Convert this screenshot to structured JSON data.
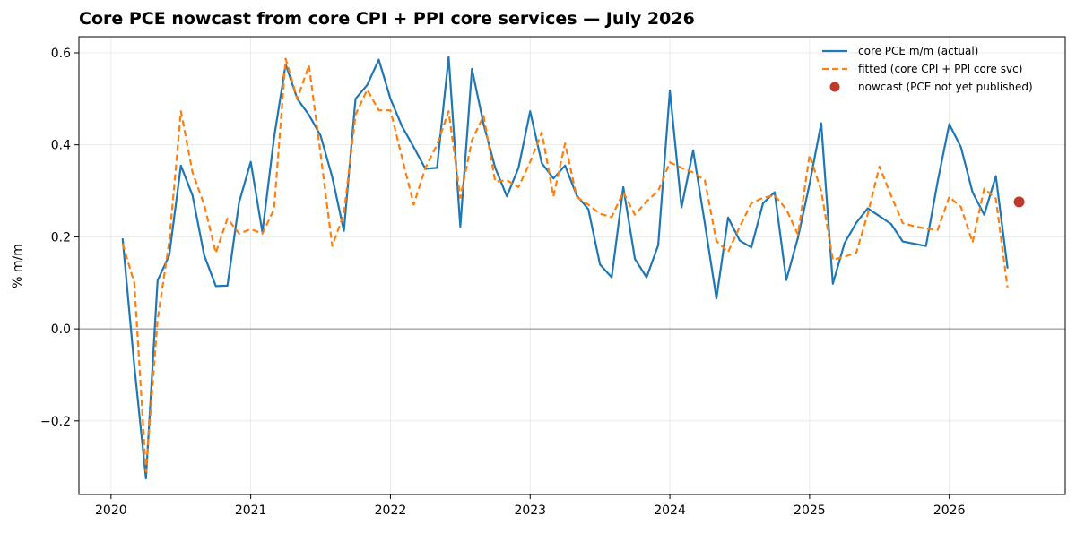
{
  "chart_data": {
    "type": "line",
    "title": "Core PCE nowcast from core CPI + PPI core services — July 2026",
    "xlabel": "",
    "ylabel": "% m/m",
    "xlim": [
      2019.77,
      2026.83
    ],
    "ylim": [
      -0.36,
      0.635
    ],
    "x_ticks": [
      2020,
      2021,
      2022,
      2023,
      2024,
      2025,
      2026
    ],
    "x_tick_labels": [
      "2020",
      "2021",
      "2022",
      "2023",
      "2024",
      "2025",
      "2026"
    ],
    "y_ticks": [
      -0.2,
      0.0,
      0.2,
      0.4,
      0.6
    ],
    "y_tick_labels": [
      "−0.2",
      "0.0",
      "0.2",
      "0.4",
      "0.6"
    ],
    "grid": true,
    "zero_line": true,
    "legend_position": "top-right",
    "x_start": "2020-02",
    "series": [
      {
        "name": "core PCE m/m (actual)",
        "color": "#1f77b4",
        "style": "solid",
        "values": [
          0.195,
          -0.08,
          -0.325,
          0.105,
          0.16,
          0.355,
          0.29,
          0.16,
          0.093,
          0.094,
          0.275,
          0.363,
          0.21,
          0.415,
          0.575,
          0.5,
          0.465,
          0.42,
          0.33,
          0.213,
          0.5,
          0.53,
          0.585,
          0.5,
          0.44,
          0.395,
          0.348,
          0.35,
          0.591,
          0.222,
          0.565,
          0.445,
          0.35,
          0.288,
          0.35,
          0.473,
          0.36,
          0.327,
          0.355,
          0.29,
          0.26,
          0.14,
          0.112,
          0.308,
          0.152,
          0.112,
          0.182,
          0.518,
          0.264,
          0.388,
          0.23,
          0.066,
          0.242,
          0.192,
          0.177,
          0.273,
          0.297,
          0.106,
          0.198,
          0.315,
          0.447,
          0.098,
          0.186,
          0.23,
          0.262,
          0.245,
          0.228,
          0.19,
          0.185,
          0.18,
          0.32,
          0.445,
          0.395,
          0.297,
          0.248,
          0.332,
          0.133
        ]
      },
      {
        "name": "fitted (core CPI + PPI core svc)",
        "color": "#ff7f0e",
        "style": "dashed",
        "values": [
          0.185,
          0.1,
          -0.31,
          0.02,
          0.19,
          0.473,
          0.34,
          0.27,
          0.165,
          0.24,
          0.207,
          0.217,
          0.207,
          0.26,
          0.587,
          0.5,
          0.573,
          0.38,
          0.18,
          0.25,
          0.465,
          0.52,
          0.475,
          0.475,
          0.372,
          0.27,
          0.35,
          0.4,
          0.473,
          0.285,
          0.41,
          0.463,
          0.32,
          0.323,
          0.308,
          0.363,
          0.427,
          0.288,
          0.403,
          0.287,
          0.27,
          0.25,
          0.243,
          0.297,
          0.248,
          0.277,
          0.3,
          0.362,
          0.35,
          0.34,
          0.323,
          0.191,
          0.167,
          0.222,
          0.273,
          0.285,
          0.29,
          0.26,
          0.205,
          0.378,
          0.3,
          0.15,
          0.157,
          0.165,
          0.25,
          0.353,
          0.29,
          0.23,
          0.223,
          0.218,
          0.215,
          0.287,
          0.265,
          0.188,
          0.305,
          0.283,
          0.09
        ]
      }
    ],
    "nowcast": {
      "name": "nowcast (PCE not yet published)",
      "color": "#c0392b",
      "x": "2026-07",
      "value": 0.276
    }
  }
}
